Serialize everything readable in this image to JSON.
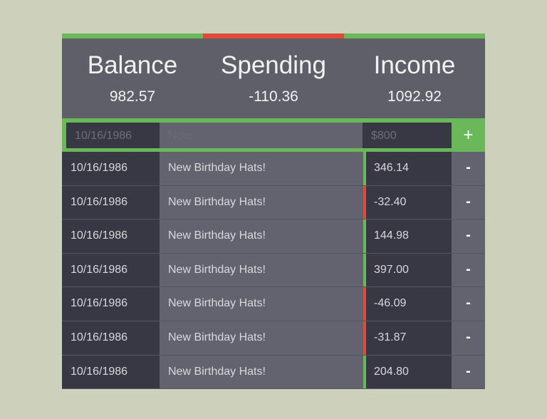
{
  "colors": {
    "positive": "#6ab85a",
    "negative": "#e04a3a"
  },
  "summary": [
    {
      "label": "Balance",
      "value": "982.57",
      "status": "positive"
    },
    {
      "label": "Spending",
      "value": "-110.36",
      "status": "negative"
    },
    {
      "label": "Income",
      "value": "1092.92",
      "status": "positive"
    }
  ],
  "input": {
    "date_placeholder": "10/16/1986",
    "note_placeholder": "Note",
    "amount_placeholder": "$800",
    "add_label": "+"
  },
  "remove_label": "-",
  "transactions": [
    {
      "date": "10/16/1986",
      "note": "New Birthday Hats!",
      "amount": "346.14",
      "status": "positive"
    },
    {
      "date": "10/16/1986",
      "note": "New Birthday Hats!",
      "amount": "-32.40",
      "status": "negative"
    },
    {
      "date": "10/16/1986",
      "note": "New Birthday Hats!",
      "amount": "144.98",
      "status": "positive"
    },
    {
      "date": "10/16/1986",
      "note": "New Birthday Hats!",
      "amount": "397.00",
      "status": "positive"
    },
    {
      "date": "10/16/1986",
      "note": "New Birthday Hats!",
      "amount": "-46.09",
      "status": "negative"
    },
    {
      "date": "10/16/1986",
      "note": "New Birthday Hats!",
      "amount": "-31.87",
      "status": "negative"
    },
    {
      "date": "10/16/1986",
      "note": "New Birthday Hats!",
      "amount": "204.80",
      "status": "positive"
    }
  ]
}
